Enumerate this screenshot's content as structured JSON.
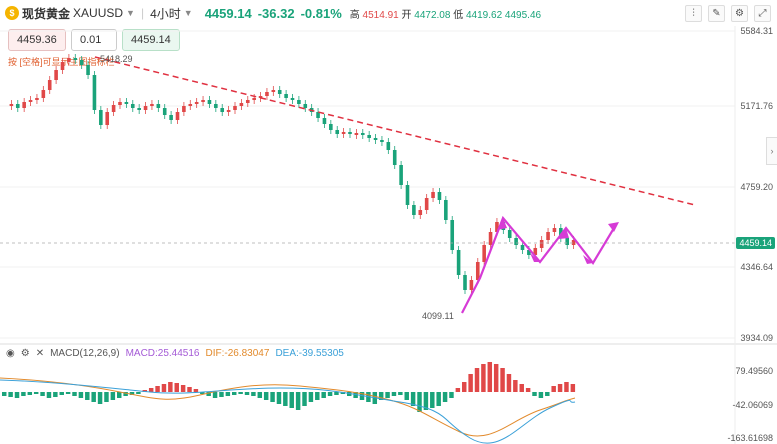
{
  "header": {
    "symbol_name": "现货黄金",
    "symbol_code": "XAUUSD",
    "timeframe": "4小时",
    "price": "4459.14",
    "change": "-36.32",
    "change_pct": "-0.81%",
    "high_label": "高",
    "high": "4514.91",
    "open_label": "开",
    "open": "4472.08",
    "low_label": "低",
    "low": "4419.62",
    "close": "4495.46"
  },
  "order": {
    "sell_price": "4459.36",
    "quantity": "0.01",
    "buy_price": "4459.14"
  },
  "hint": "按 [空格]可显示主图指标栏",
  "price_axis": [
    "5584.31",
    "5171.76",
    "4759.20",
    "4346.64",
    "3934.09"
  ],
  "current_price_tag": "4459.14",
  "annotations": {
    "high_marker": "5418.29",
    "low_marker": "4099.11"
  },
  "macd": {
    "title": "MACD(12,26,9)",
    "macd_value": "MACD:25.44516",
    "dif_value": "DIF:-26.83047",
    "dea_value": "DEA:-39.55305",
    "axis": [
      "79.49560",
      "-42.06069",
      "-163.61698"
    ]
  },
  "colors": {
    "up": "#e04848",
    "down": "#1aa37a",
    "trend": "#e03040",
    "projection": "#d63bd6"
  }
}
